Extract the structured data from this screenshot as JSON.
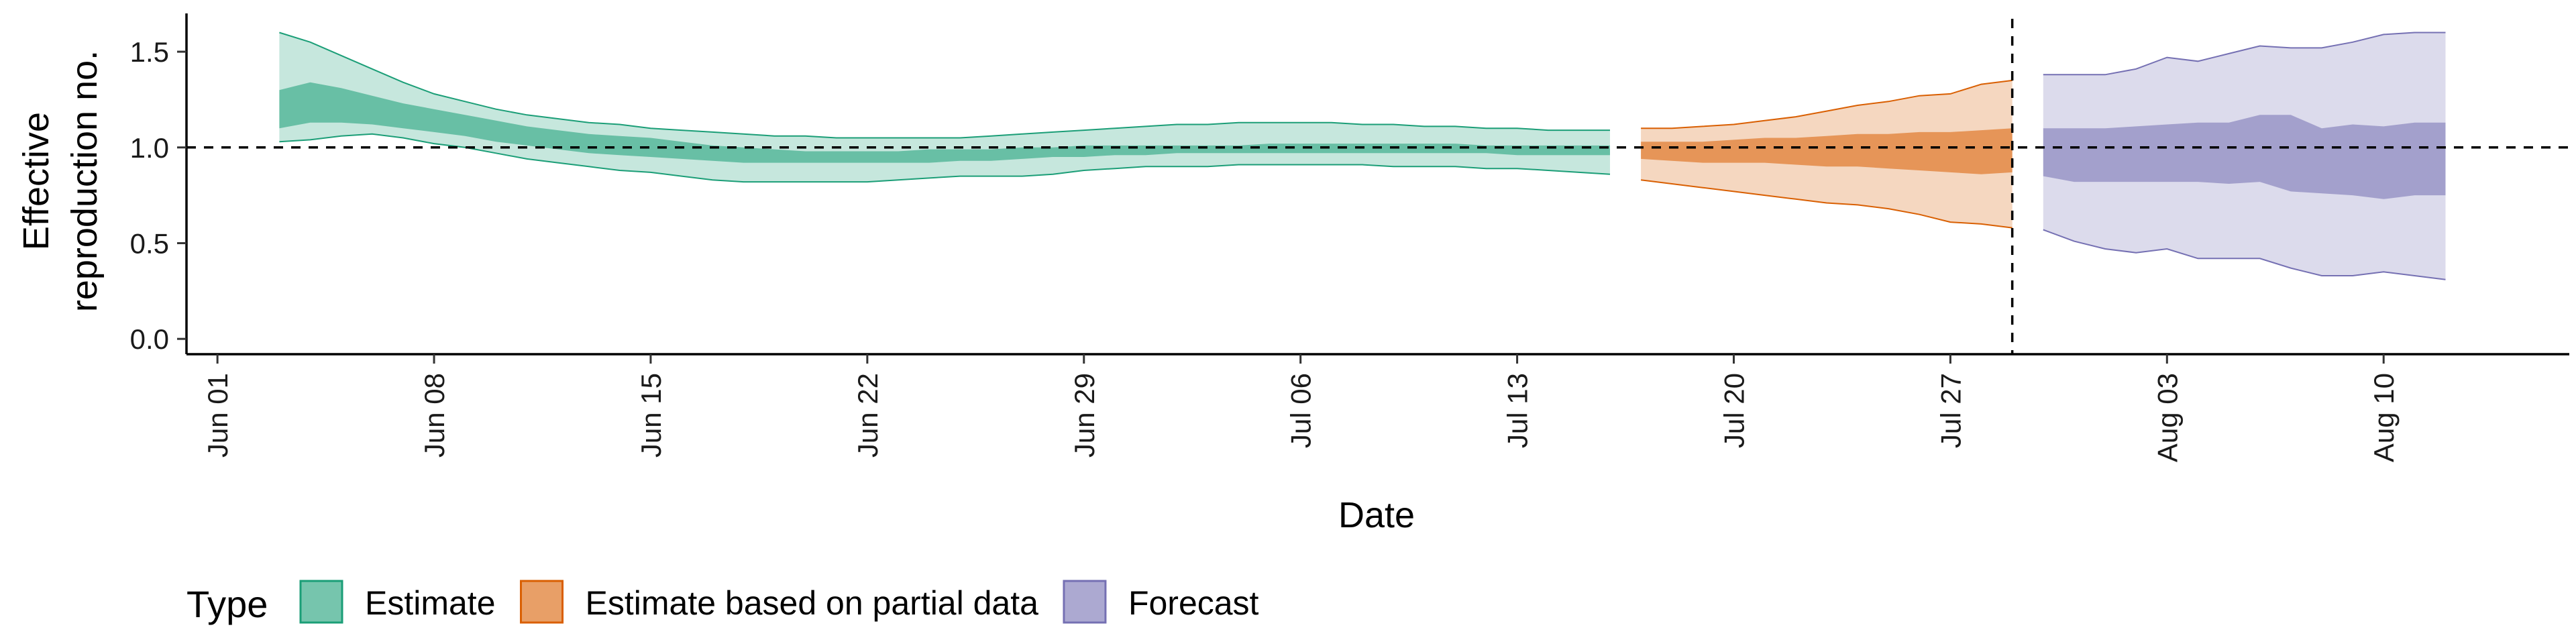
{
  "chart_data": {
    "type": "area",
    "xlabel": "Date",
    "ylabel_lines": [
      "Effective",
      "reproduction no."
    ],
    "x_range": [
      "2020-05-31",
      "2020-08-16"
    ],
    "ylim": [
      -0.08,
      1.7
    ],
    "y_ticks": [
      0.0,
      0.5,
      1.0,
      1.5
    ],
    "y_tick_labels": [
      "0.0",
      "0.5",
      "1.0",
      "1.5"
    ],
    "x_ticks": [
      "2020-06-01",
      "2020-06-08",
      "2020-06-15",
      "2020-06-22",
      "2020-06-29",
      "2020-07-06",
      "2020-07-13",
      "2020-07-20",
      "2020-07-27",
      "2020-08-03",
      "2020-08-10"
    ],
    "x_tick_labels": [
      "Jun 01",
      "Jun 08",
      "Jun 15",
      "Jun 22",
      "Jun 29",
      "Jul 06",
      "Jul 13",
      "Jul 20",
      "Jul 27",
      "Aug 03",
      "Aug 10"
    ],
    "reference_hline": 1.0,
    "reference_vline": "2020-07-29",
    "grid": false,
    "legend": {
      "title": "Type",
      "position": "bottom-left",
      "entries": [
        {
          "label": "Estimate",
          "color": "#1b9e77"
        },
        {
          "label": "Estimate based on partial data",
          "color": "#d95f02"
        },
        {
          "label": "Forecast",
          "color": "#7570b3"
        }
      ]
    },
    "series": [
      {
        "name": "Estimate",
        "color": "#1b9e77",
        "outer_alpha": 0.25,
        "inner_alpha": 0.55,
        "dates": [
          "2020-06-03",
          "2020-06-04",
          "2020-06-05",
          "2020-06-06",
          "2020-06-07",
          "2020-06-08",
          "2020-06-09",
          "2020-06-10",
          "2020-06-11",
          "2020-06-12",
          "2020-06-13",
          "2020-06-14",
          "2020-06-15",
          "2020-06-16",
          "2020-06-17",
          "2020-06-18",
          "2020-06-19",
          "2020-06-20",
          "2020-06-21",
          "2020-06-22",
          "2020-06-23",
          "2020-06-24",
          "2020-06-25",
          "2020-06-26",
          "2020-06-27",
          "2020-06-28",
          "2020-06-29",
          "2020-06-30",
          "2020-07-01",
          "2020-07-02",
          "2020-07-03",
          "2020-07-04",
          "2020-07-05",
          "2020-07-06",
          "2020-07-07",
          "2020-07-08",
          "2020-07-09",
          "2020-07-10",
          "2020-07-11",
          "2020-07-12",
          "2020-07-13",
          "2020-07-14",
          "2020-07-15",
          "2020-07-16"
        ],
        "outer_lower": [
          1.03,
          1.04,
          1.06,
          1.07,
          1.05,
          1.02,
          1.0,
          0.97,
          0.94,
          0.92,
          0.9,
          0.88,
          0.87,
          0.85,
          0.83,
          0.82,
          0.82,
          0.82,
          0.82,
          0.82,
          0.83,
          0.84,
          0.85,
          0.85,
          0.85,
          0.86,
          0.88,
          0.89,
          0.9,
          0.9,
          0.9,
          0.91,
          0.91,
          0.91,
          0.91,
          0.91,
          0.9,
          0.9,
          0.9,
          0.89,
          0.89,
          0.88,
          0.87,
          0.86
        ],
        "inner_lower": [
          1.1,
          1.13,
          1.13,
          1.12,
          1.1,
          1.08,
          1.06,
          1.03,
          1.01,
          0.99,
          0.97,
          0.96,
          0.95,
          0.94,
          0.93,
          0.92,
          0.92,
          0.92,
          0.92,
          0.92,
          0.92,
          0.92,
          0.93,
          0.93,
          0.94,
          0.95,
          0.95,
          0.96,
          0.96,
          0.97,
          0.97,
          0.97,
          0.97,
          0.97,
          0.97,
          0.97,
          0.97,
          0.97,
          0.97,
          0.97,
          0.96,
          0.96,
          0.96,
          0.96
        ],
        "inner_upper": [
          1.3,
          1.34,
          1.31,
          1.27,
          1.23,
          1.2,
          1.17,
          1.14,
          1.11,
          1.09,
          1.07,
          1.06,
          1.05,
          1.03,
          1.01,
          1.0,
          0.99,
          0.98,
          0.98,
          0.98,
          0.98,
          0.99,
          0.99,
          0.99,
          1.0,
          1.0,
          1.01,
          1.01,
          1.01,
          1.01,
          1.01,
          1.01,
          1.02,
          1.02,
          1.02,
          1.02,
          1.02,
          1.02,
          1.02,
          1.01,
          1.01,
          1.01,
          1.01,
          1.01
        ],
        "outer_upper": [
          1.6,
          1.55,
          1.48,
          1.41,
          1.34,
          1.28,
          1.24,
          1.2,
          1.17,
          1.15,
          1.13,
          1.12,
          1.1,
          1.09,
          1.08,
          1.07,
          1.06,
          1.06,
          1.05,
          1.05,
          1.05,
          1.05,
          1.05,
          1.06,
          1.07,
          1.08,
          1.09,
          1.1,
          1.11,
          1.12,
          1.12,
          1.13,
          1.13,
          1.13,
          1.13,
          1.12,
          1.12,
          1.11,
          1.11,
          1.1,
          1.1,
          1.09,
          1.09,
          1.09
        ]
      },
      {
        "name": "Estimate based on partial data",
        "color": "#d95f02",
        "outer_alpha": 0.25,
        "inner_alpha": 0.55,
        "dates": [
          "2020-07-17",
          "2020-07-18",
          "2020-07-19",
          "2020-07-20",
          "2020-07-21",
          "2020-07-22",
          "2020-07-23",
          "2020-07-24",
          "2020-07-25",
          "2020-07-26",
          "2020-07-27",
          "2020-07-28",
          "2020-07-29"
        ],
        "outer_lower": [
          0.83,
          0.81,
          0.79,
          0.77,
          0.75,
          0.73,
          0.71,
          0.7,
          0.68,
          0.65,
          0.61,
          0.6,
          0.58
        ],
        "inner_lower": [
          0.94,
          0.93,
          0.92,
          0.92,
          0.92,
          0.91,
          0.9,
          0.9,
          0.89,
          0.88,
          0.87,
          0.86,
          0.87
        ],
        "inner_upper": [
          1.03,
          1.03,
          1.03,
          1.04,
          1.05,
          1.05,
          1.06,
          1.07,
          1.07,
          1.08,
          1.08,
          1.09,
          1.1
        ],
        "outer_upper": [
          1.1,
          1.1,
          1.11,
          1.12,
          1.14,
          1.16,
          1.19,
          1.22,
          1.24,
          1.27,
          1.28,
          1.33,
          1.35
        ]
      },
      {
        "name": "Forecast",
        "color": "#7570b3",
        "outer_alpha": 0.25,
        "inner_alpha": 0.55,
        "dates": [
          "2020-07-30",
          "2020-07-31",
          "2020-08-01",
          "2020-08-02",
          "2020-08-03",
          "2020-08-04",
          "2020-08-05",
          "2020-08-06",
          "2020-08-07",
          "2020-08-08",
          "2020-08-09",
          "2020-08-10",
          "2020-08-11",
          "2020-08-12"
        ],
        "outer_lower": [
          0.57,
          0.51,
          0.47,
          0.45,
          0.47,
          0.42,
          0.42,
          0.42,
          0.37,
          0.33,
          0.33,
          0.35,
          0.33,
          0.31
        ],
        "inner_lower": [
          0.85,
          0.82,
          0.82,
          0.82,
          0.82,
          0.82,
          0.81,
          0.82,
          0.77,
          0.76,
          0.75,
          0.73,
          0.75,
          0.75
        ],
        "inner_upper": [
          1.1,
          1.1,
          1.1,
          1.11,
          1.12,
          1.13,
          1.13,
          1.17,
          1.17,
          1.1,
          1.12,
          1.11,
          1.13,
          1.13
        ],
        "outer_upper": [
          1.38,
          1.38,
          1.38,
          1.41,
          1.47,
          1.45,
          1.49,
          1.53,
          1.52,
          1.52,
          1.55,
          1.59,
          1.6,
          1.6
        ]
      }
    ]
  }
}
